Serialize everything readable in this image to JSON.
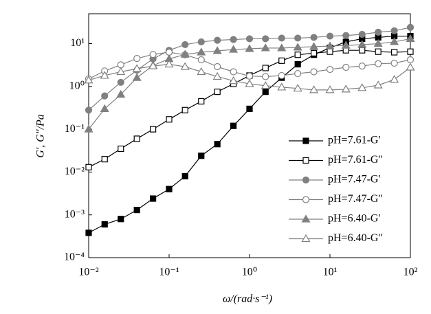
{
  "chart_data": {
    "type": "line",
    "x_label": "ω/(rad·s⁻¹)",
    "y_label": "G', G''/Pa",
    "x_log": true,
    "y_log": true,
    "xlim": [
      0.01,
      100
    ],
    "ylim": [
      0.0001,
      50
    ],
    "xticks": [
      {
        "value": 0.01,
        "label": "10⁻²"
      },
      {
        "value": 0.1,
        "label": "10⁻¹"
      },
      {
        "value": 1,
        "label": "10⁰"
      },
      {
        "value": 10,
        "label": "10¹"
      },
      {
        "value": 100,
        "label": "10²"
      }
    ],
    "yticks": [
      {
        "value": 0.0001,
        "label": "10⁻⁴"
      },
      {
        "value": 0.001,
        "label": "10⁻³"
      },
      {
        "value": 0.01,
        "label": "10⁻²"
      },
      {
        "value": 0.1,
        "label": "10⁻¹"
      },
      {
        "value": 1,
        "label": "10⁰"
      },
      {
        "value": 10,
        "label": "10¹"
      }
    ],
    "legend": "right",
    "x": [
      0.01,
      0.0158,
      0.0251,
      0.0398,
      0.0631,
      0.1,
      0.158,
      0.251,
      0.398,
      0.631,
      1,
      1.58,
      2.51,
      3.98,
      6.31,
      10,
      15.8,
      25.1,
      39.8,
      63.1,
      100
    ],
    "series": [
      {
        "name": "pH=7.61-G'",
        "color": "#000000",
        "marker": "square",
        "filled": true,
        "values": [
          0.00038,
          0.0006,
          0.0008,
          0.0013,
          0.0024,
          0.004,
          0.008,
          0.024,
          0.045,
          0.12,
          0.3,
          0.75,
          1.6,
          3.3,
          5.5,
          8,
          11,
          13,
          14,
          15,
          15
        ]
      },
      {
        "name": "pH=7.61-G''",
        "color": "#000000",
        "marker": "square",
        "filled": false,
        "values": [
          0.013,
          0.02,
          0.035,
          0.06,
          0.1,
          0.17,
          0.28,
          0.45,
          0.75,
          1.15,
          1.8,
          2.7,
          4,
          5.5,
          6,
          6.5,
          7,
          7,
          6.5,
          6.3,
          6.5
        ]
      },
      {
        "name": "pH=7.47-G'",
        "color": "#808080",
        "marker": "circle",
        "filled": true,
        "values": [
          0.28,
          0.6,
          1.25,
          2.4,
          4.4,
          7,
          9.5,
          11,
          12,
          12.5,
          13,
          13,
          13.5,
          13.5,
          14,
          15,
          15.5,
          16.5,
          18.5,
          20,
          24
        ]
      },
      {
        "name": "pH=7.47-G''",
        "color": "#808080",
        "marker": "circle",
        "filled": false,
        "values": [
          1.5,
          2.3,
          3.2,
          4.5,
          5.6,
          6.3,
          5.5,
          4.2,
          2.9,
          2.2,
          1.75,
          1.7,
          1.8,
          2,
          2.2,
          2.5,
          2.8,
          3,
          3.4,
          3.5,
          4.2
        ]
      },
      {
        "name": "pH=6.40-G'",
        "color": "#808080",
        "marker": "triangle",
        "filled": true,
        "values": [
          0.1,
          0.3,
          0.65,
          1.6,
          3.1,
          4.4,
          5.6,
          6.3,
          6.8,
          7.3,
          7.6,
          7.9,
          7.9,
          8.2,
          8.5,
          8.8,
          9.1,
          9.5,
          10,
          11,
          13
        ]
      },
      {
        "name": "pH=6.40-G''",
        "color": "#808080",
        "marker": "triangle",
        "filled": false,
        "values": [
          1.4,
          1.8,
          2.2,
          2.6,
          3,
          3.3,
          2.9,
          2.2,
          1.7,
          1.35,
          1.15,
          1.04,
          0.96,
          0.9,
          0.83,
          0.83,
          0.86,
          0.93,
          1.07,
          1.45,
          2.8
        ]
      }
    ]
  }
}
